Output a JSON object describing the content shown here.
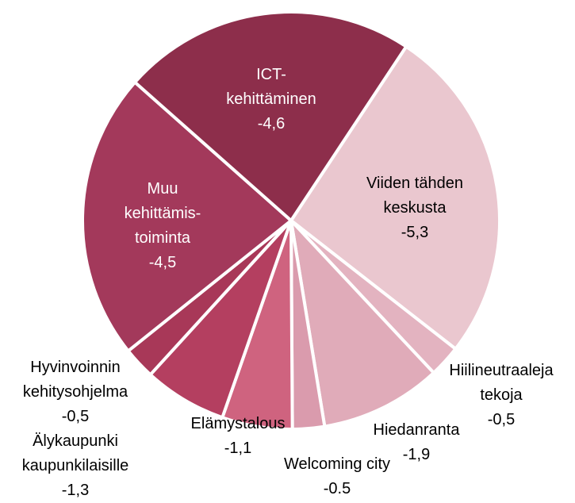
{
  "chart_data": {
    "type": "pie",
    "categories": [
      "Viiden tähden keskusta",
      "Hiilineutraaleja tekoja",
      "Hiedanranta",
      "Welcoming city",
      "Elämystalous",
      "Älykaupunki kaupunkilaisille",
      "Hyvinvoinnin kehitysohjelma",
      "Muu kehittämis-toiminta",
      "ICT-kehittäminen"
    ],
    "values": [
      -5.3,
      -0.5,
      -1.9,
      -0.5,
      -1.1,
      -1.3,
      -0.5,
      -4.5,
      -4.6
    ],
    "value_labels": [
      "-5,3",
      "-0,5",
      "-1,9",
      "-0.5",
      "-1,1",
      "-1,3",
      "-0,5",
      "-4,5",
      "-4,6"
    ],
    "colors": [
      "#eac7cf",
      "#e3b3c0",
      "#e0abb9",
      "#da9bad",
      "#cf637f",
      "#b43f60",
      "#a83858",
      "#a3395b",
      "#8d2e4b"
    ]
  }
}
